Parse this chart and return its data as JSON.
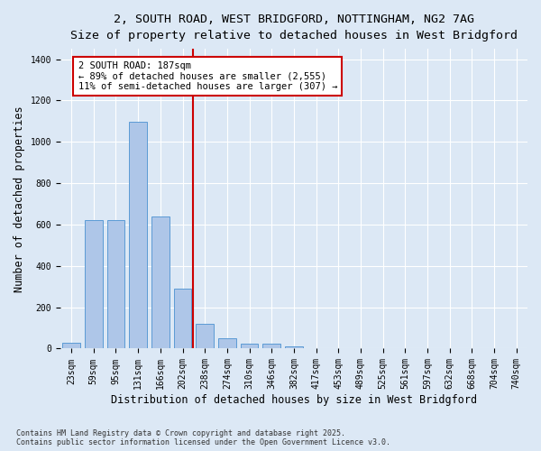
{
  "title_line1": "2, SOUTH ROAD, WEST BRIDGFORD, NOTTINGHAM, NG2 7AG",
  "title_line2": "Size of property relative to detached houses in West Bridgford",
  "xlabel": "Distribution of detached houses by size in West Bridgford",
  "ylabel": "Number of detached properties",
  "footer_line1": "Contains HM Land Registry data © Crown copyright and database right 2025.",
  "footer_line2": "Contains public sector information licensed under the Open Government Licence v3.0.",
  "categories": [
    "23sqm",
    "59sqm",
    "95sqm",
    "131sqm",
    "166sqm",
    "202sqm",
    "238sqm",
    "274sqm",
    "310sqm",
    "346sqm",
    "382sqm",
    "417sqm",
    "453sqm",
    "489sqm",
    "525sqm",
    "561sqm",
    "597sqm",
    "632sqm",
    "668sqm",
    "704sqm",
    "740sqm"
  ],
  "values": [
    30,
    620,
    620,
    1095,
    640,
    290,
    120,
    50,
    25,
    25,
    10,
    0,
    0,
    0,
    0,
    0,
    0,
    0,
    0,
    0,
    0
  ],
  "bar_color": "#aec6e8",
  "bar_edge_color": "#5b9bd5",
  "bar_width": 0.8,
  "red_line_x": 5.45,
  "annotation_title": "2 SOUTH ROAD: 187sqm",
  "annotation_line1": "← 89% of detached houses are smaller (2,555)",
  "annotation_line2": "11% of semi-detached houses are larger (307) →",
  "annotation_box_color": "#ffffff",
  "annotation_box_edge_color": "#cc0000",
  "ylim": [
    0,
    1450
  ],
  "yticks": [
    0,
    200,
    400,
    600,
    800,
    1000,
    1200,
    1400
  ],
  "background_color": "#dce8f5",
  "grid_color": "#ffffff",
  "title_fontsize": 9.5,
  "axis_label_fontsize": 8.5,
  "tick_fontsize": 7,
  "annotation_fontsize": 7.5
}
